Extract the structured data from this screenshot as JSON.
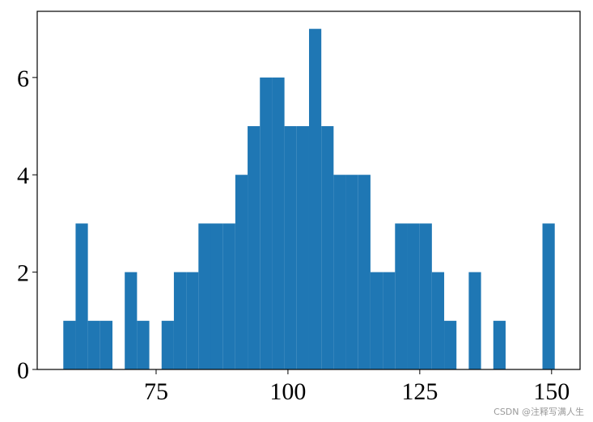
{
  "chart_data": {
    "type": "histogram",
    "color": "#1f77b4",
    "bins": [
      57.4,
      59.73,
      62.06,
      64.39,
      66.72,
      69.05,
      71.38,
      73.71,
      76.04,
      78.37,
      80.7,
      83.03,
      85.36,
      87.69,
      90.02,
      92.35,
      94.68,
      97.01,
      99.34,
      101.67,
      104.0,
      106.33,
      108.66,
      110.99,
      113.32,
      115.65,
      117.98,
      120.31,
      122.64,
      124.97,
      127.3,
      129.63,
      131.96,
      134.29,
      136.62,
      138.95,
      141.28,
      143.61,
      145.94,
      148.27,
      150.6
    ],
    "values": [
      1,
      3,
      1,
      1,
      0,
      2,
      1,
      0,
      1,
      2,
      2,
      3,
      3,
      3,
      4,
      5,
      6,
      6,
      5,
      5,
      7,
      5,
      4,
      4,
      4,
      2,
      2,
      3,
      3,
      3,
      2,
      1,
      0,
      2,
      0,
      1,
      0,
      0,
      0,
      3
    ],
    "xlim": [
      52.45,
      155.4
    ],
    "ylim": [
      0,
      7.36
    ],
    "xticks": [
      75,
      100,
      125,
      150
    ],
    "yticks": [
      0,
      2,
      4,
      6
    ]
  },
  "watermark": "CSDN @注释写满人生"
}
